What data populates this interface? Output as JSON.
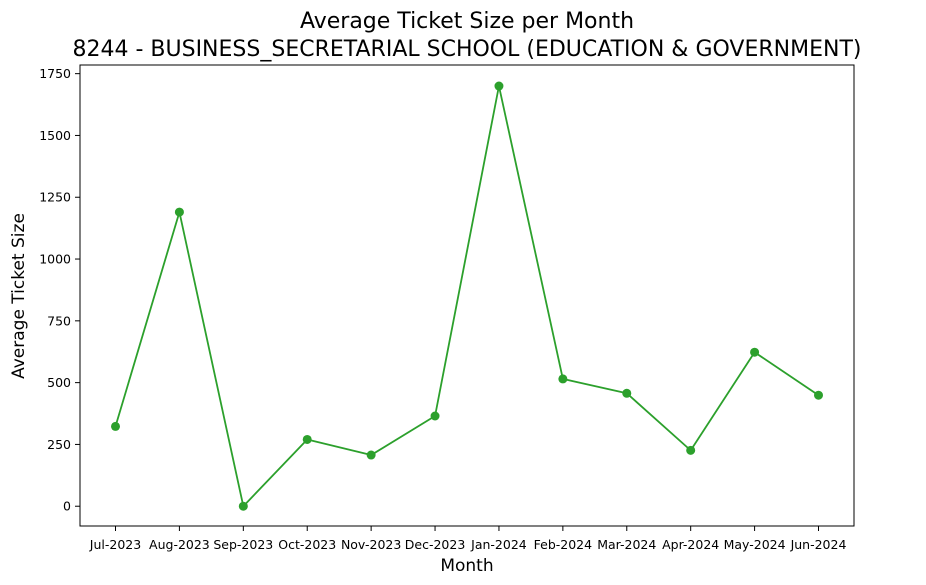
{
  "chart_data": {
    "type": "line",
    "title": "Average Ticket Size per Month",
    "subtitle": "8244 - BUSINESS_SECRETARIAL SCHOOL (EDUCATION & GOVERNMENT)",
    "xlabel": "Month",
    "ylabel": "Average Ticket Size",
    "categories": [
      "Jul-2023",
      "Aug-2023",
      "Sep-2023",
      "Oct-2023",
      "Nov-2023",
      "Dec-2023",
      "Jan-2024",
      "Feb-2024",
      "Mar-2024",
      "Apr-2024",
      "May-2024",
      "Jun-2024"
    ],
    "series": [
      {
        "values": [
          323,
          1190,
          0,
          270,
          207,
          365,
          1700,
          515,
          457,
          226,
          623,
          449
        ],
        "color": "#2ca02c",
        "marker": "circle"
      }
    ],
    "ylim": [
      -80,
      1785
    ],
    "yticks": [
      0,
      250,
      500,
      750,
      1000,
      1250,
      1500,
      1750
    ],
    "ytick_labels": [
      "0",
      "250",
      "500",
      "750",
      "1000",
      "1250",
      "1500",
      "1750"
    ],
    "grid": false,
    "legend": "none"
  }
}
